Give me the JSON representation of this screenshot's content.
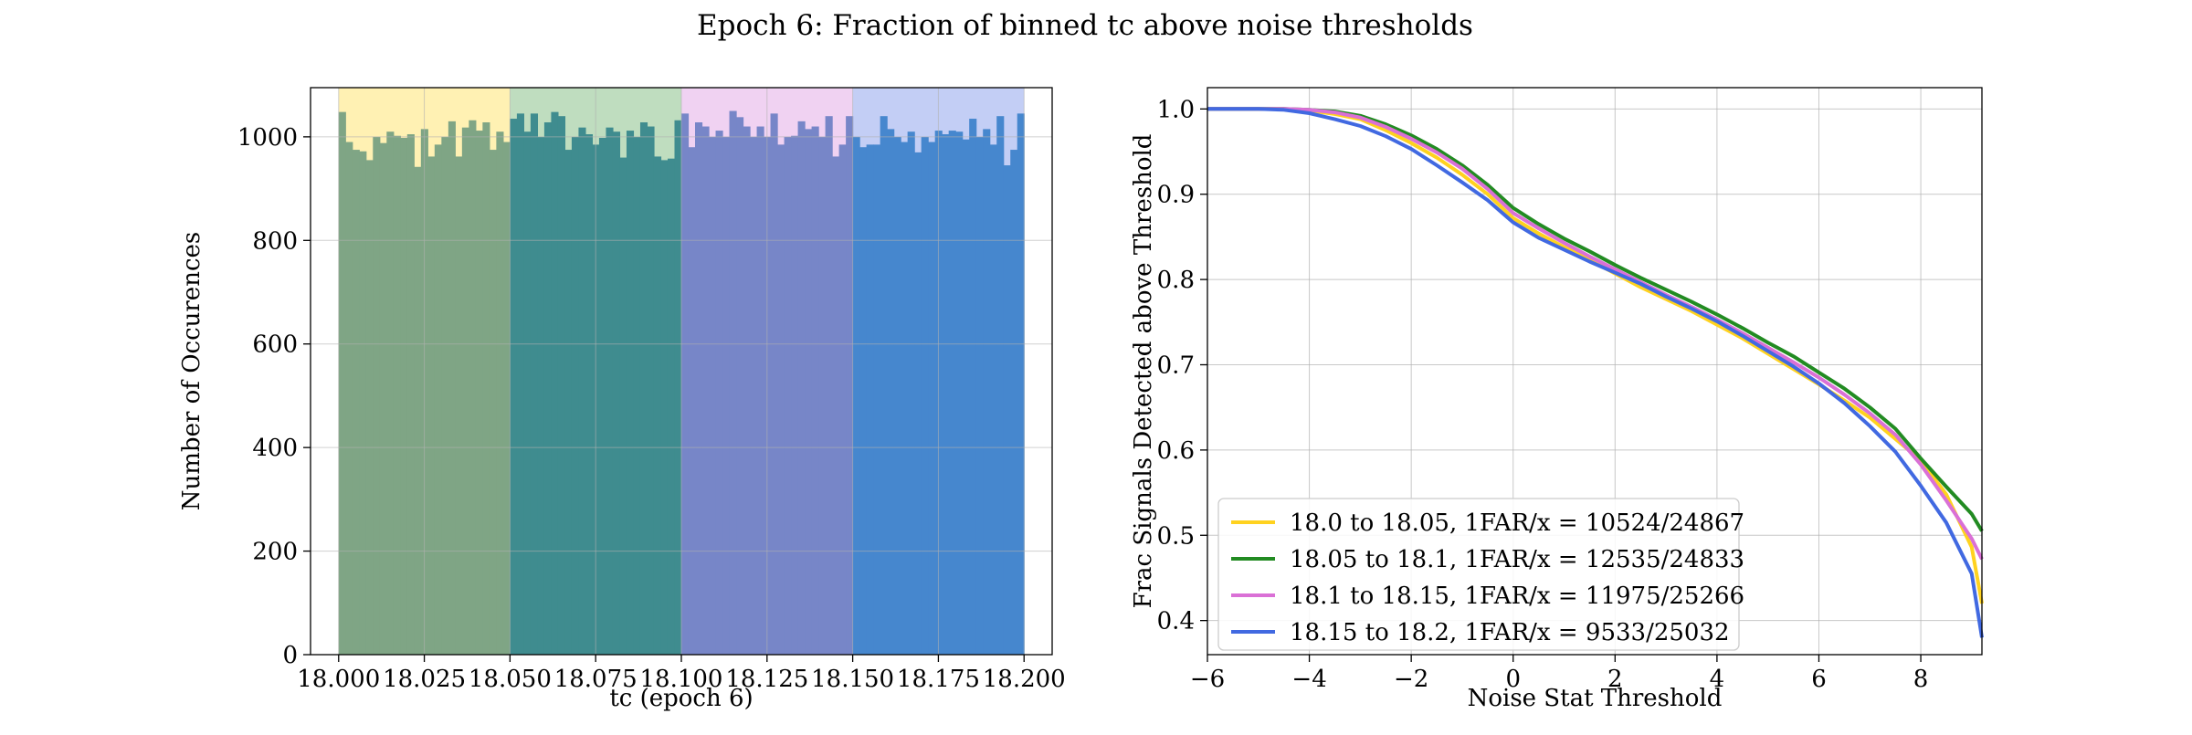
{
  "figure": {
    "title": "Epoch 6: Fraction of binned tc above noise thresholds"
  },
  "chart_data": [
    {
      "type": "bar",
      "subtype": "histogram",
      "xlabel": "tc (epoch 6)",
      "ylabel": "Number of Occurences",
      "xlim": [
        17.9918,
        18.2082
      ],
      "ylim": [
        0,
        1095
      ],
      "xticks": [
        18.0,
        18.025,
        18.05,
        18.075,
        18.1,
        18.125,
        18.15,
        18.175,
        18.2
      ],
      "xtick_labels": [
        "18.000",
        "18.025",
        "18.050",
        "18.075",
        "18.100",
        "18.125",
        "18.150",
        "18.175",
        "18.200"
      ],
      "yticks": [
        0,
        200,
        400,
        600,
        800,
        1000
      ],
      "ytick_labels": [
        "0",
        "200",
        "400",
        "600",
        "800",
        "1000"
      ],
      "grid": true,
      "bin_range": [
        18.0,
        18.2
      ],
      "bin_width": 0.002,
      "values": [
        1048,
        990,
        975,
        972,
        955,
        1000,
        988,
        1010,
        1002,
        998,
        1005,
        942,
        1015,
        962,
        985,
        1000,
        1030,
        962,
        1018,
        1032,
        1012,
        1028,
        975,
        1010,
        990,
        1035,
        1045,
        1010,
        1045,
        1000,
        1028,
        1048,
        1040,
        975,
        1000,
        1018,
        1005,
        985,
        998,
        1018,
        1010,
        960,
        1012,
        1000,
        1028,
        1020,
        962,
        955,
        958,
        1032,
        1045,
        980,
        1028,
        1020,
        1000,
        1012,
        1000,
        1050,
        1038,
        1020,
        1000,
        1020,
        1000,
        1045,
        985,
        1000,
        1002,
        1030,
        1015,
        1020,
        1000,
        1040,
        962,
        985,
        1040,
        1000,
        980,
        985,
        985,
        1040,
        1015,
        1000,
        990,
        1010,
        970,
        1000,
        990,
        1012,
        1005,
        1012,
        1010,
        995,
        1035,
        1000,
        1015,
        985,
        1040,
        945,
        975,
        1045
      ],
      "regions": [
        {
          "x": [
            18.0,
            18.05
          ],
          "face_color": "#FFF1B3",
          "bar_color": "#7FA585"
        },
        {
          "x": [
            18.05,
            18.1
          ],
          "face_color": "#BFDDBF",
          "bar_color": "#3F8C8F"
        },
        {
          "x": [
            18.1,
            18.15
          ],
          "face_color": "#F0D2F2",
          "bar_color": "#7786C8"
        },
        {
          "x": [
            18.15,
            18.2
          ],
          "face_color": "#C3CEF5",
          "bar_color": "#4687CE"
        }
      ]
    },
    {
      "type": "line",
      "xlabel": "Noise Stat Threshold",
      "ylabel": "Frac Signals Detected above Threshold",
      "xlim": [
        -6.0,
        9.2
      ],
      "ylim": [
        0.36,
        1.025
      ],
      "xticks": [
        -6,
        -4,
        -2,
        0,
        2,
        4,
        6,
        8
      ],
      "xtick_labels": [
        "−6",
        "−4",
        "−2",
        "0",
        "2",
        "4",
        "6",
        "8"
      ],
      "yticks": [
        0.4,
        0.5,
        0.6,
        0.7,
        0.8,
        0.9,
        1.0
      ],
      "ytick_labels": [
        "0.4",
        "0.5",
        "0.6",
        "0.7",
        "0.8",
        "0.9",
        "1.0"
      ],
      "grid": true,
      "legend_position": "lower-left",
      "x": [
        -6,
        -5,
        -4.5,
        -4,
        -3.5,
        -3,
        -2.5,
        -2,
        -1.5,
        -1,
        -0.5,
        0,
        0.5,
        1,
        1.5,
        2,
        2.5,
        3,
        3.5,
        4,
        4.5,
        5,
        5.5,
        6,
        6.5,
        7,
        7.5,
        8,
        8.5,
        9,
        9.2
      ],
      "series": [
        {
          "name": "18.0 to 18.05, 1FAR/x = 10524/24867",
          "color": "#FFD21F",
          "values": [
            1.0,
            1.0,
            1.0,
            0.998,
            0.994,
            0.988,
            0.975,
            0.96,
            0.943,
            0.923,
            0.9,
            0.872,
            0.854,
            0.838,
            0.823,
            0.807,
            0.791,
            0.777,
            0.763,
            0.747,
            0.731,
            0.713,
            0.695,
            0.677,
            0.658,
            0.638,
            0.613,
            0.588,
            0.548,
            0.486,
            0.42
          ]
        },
        {
          "name": "18.05 to 18.1, 1FAR/x = 12535/24833",
          "color": "#228B22",
          "values": [
            1.0,
            1.0,
            1.0,
            0.999,
            0.997,
            0.992,
            0.982,
            0.969,
            0.953,
            0.934,
            0.911,
            0.884,
            0.865,
            0.848,
            0.833,
            0.817,
            0.802,
            0.788,
            0.774,
            0.759,
            0.743,
            0.726,
            0.71,
            0.691,
            0.672,
            0.65,
            0.625,
            0.59,
            0.557,
            0.525,
            0.505
          ]
        },
        {
          "name": "18.1 to 18.15, 1FAR/x = 11975/25266",
          "color": "#DA70D6",
          "values": [
            1.0,
            1.0,
            1.0,
            0.999,
            0.996,
            0.99,
            0.979,
            0.965,
            0.949,
            0.93,
            0.906,
            0.878,
            0.86,
            0.843,
            0.827,
            0.812,
            0.797,
            0.782,
            0.768,
            0.753,
            0.737,
            0.72,
            0.703,
            0.685,
            0.665,
            0.643,
            0.618,
            0.583,
            0.541,
            0.496,
            0.472
          ]
        },
        {
          "name": "18.15 to 18.2, 1FAR/x = 9533/25032",
          "color": "#4169E1",
          "values": [
            1.0,
            1.0,
            0.999,
            0.995,
            0.988,
            0.98,
            0.968,
            0.953,
            0.934,
            0.914,
            0.893,
            0.867,
            0.849,
            0.835,
            0.821,
            0.808,
            0.795,
            0.78,
            0.766,
            0.751,
            0.734,
            0.716,
            0.698,
            0.678,
            0.655,
            0.628,
            0.598,
            0.558,
            0.515,
            0.455,
            0.38
          ]
        }
      ]
    }
  ]
}
